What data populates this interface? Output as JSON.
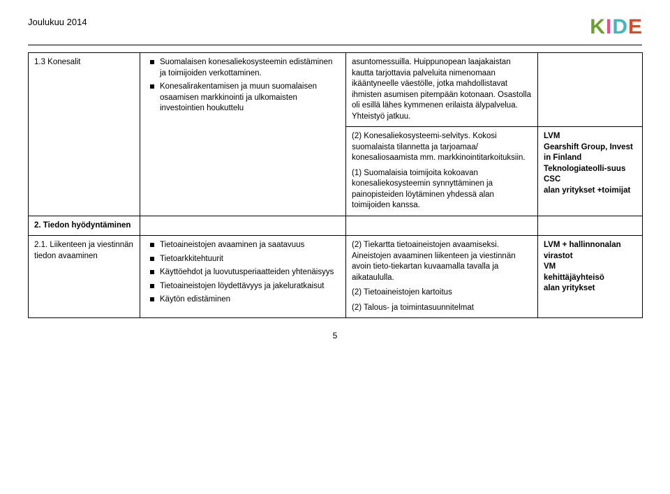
{
  "header": {
    "date_label": "Joulukuu 2014",
    "logo_letters": {
      "k": "K",
      "i": "I",
      "d": "D",
      "e": "E"
    }
  },
  "row1": {
    "title": "1.3 Konesalit",
    "b_para1": "Suomalaisen konesaliekosysteemin edistäminen ja toimijoiden verkottaminen.",
    "b_para2": "Konesalirakentamisen ja muun suomalaisen osaamisen markkinointi ja ulkomaisten investointien houkuttelu",
    "c_top": "asuntomessuilla. Huippunopean laajakaistan kautta tarjottavia palveluita nimenomaan ikääntyneelle väestölle, jotka mahdollistavat ihmisten asumisen pitempään kotonaan. Osastolla oli esillä lähes kymmenen erilaista älypalvelua. Yhteistyö jatkuu.",
    "c_mid": "(2) Konesaliekosysteemi-selvitys. Kokosi suomalaista tilannetta ja tarjoamaa/ konesaliosaamista mm. markkinointitarkoituksiin.",
    "c_bot": "(1) Suomalaisia toimijoita kokoavan konesaliekosysteemin synnyttäminen ja painopisteiden löytäminen yhdessä alan toimijoiden kanssa.",
    "d1": "LVM",
    "d2": "Gearshift Group, Invest in Finland Teknologiateolli-suus",
    "d3": "CSC",
    "d4": "alan yritykset +toimijat"
  },
  "section": {
    "label": "2. Tiedon hyödyntäminen"
  },
  "row2": {
    "title": "2.1. Liikenteen ja viestinnän tiedon avaaminen",
    "b_items": [
      "Tietoaineistojen avaaminen ja saatavuus",
      "Tietoarkkitehtuurit",
      "Käyttöehdot ja luovutusperiaatteiden yhtenäisyys",
      "Tietoaineistojen löydettävyys ja jakeluratkaisut",
      "Käytön edistäminen"
    ],
    "c_p1": "(2) Tiekartta tietoaineistojen avaamiseksi. Aineistojen avaaminen liikenteen ja viestinnän avoin tieto-tiekartan kuvaamalla tavalla ja aikataululla.",
    "c_p2": "(2) Tietoaineistojen kartoitus",
    "c_p3": "(2) Talous- ja toimintasuunnitelmat",
    "d1": "LVM + hallinnonalan virastot",
    "d2": "VM",
    "d3": "kehittäjäyhteisö",
    "d4": "alan yritykset"
  },
  "page_number": "5"
}
